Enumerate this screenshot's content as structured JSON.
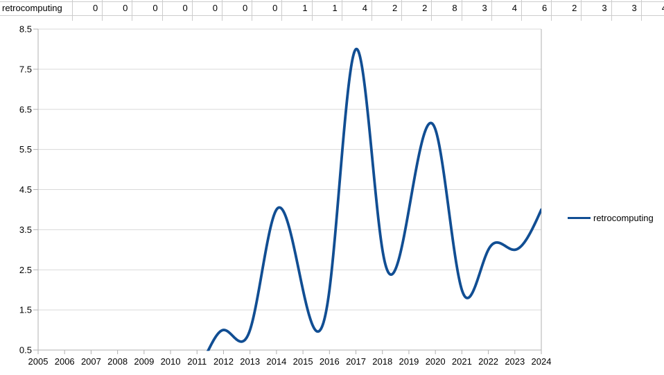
{
  "spreadsheet": {
    "row_label": "retrocomputing",
    "values": [
      "0",
      "0",
      "0",
      "0",
      "0",
      "0",
      "0",
      "1",
      "1",
      "4",
      "2",
      "2",
      "8",
      "3",
      "4",
      "6",
      "2",
      "3",
      "3",
      "4"
    ]
  },
  "chart_data": {
    "type": "line",
    "smooth": "cubic-spline",
    "title": "",
    "xlabel": "",
    "ylabel": "",
    "categories": [
      "2005",
      "2006",
      "2007",
      "2008",
      "2009",
      "2010",
      "2011",
      "2012",
      "2013",
      "2014",
      "2015",
      "2016",
      "2017",
      "2018",
      "2019",
      "2020",
      "2021",
      "2022",
      "2023",
      "2024"
    ],
    "series": [
      {
        "name": "retrocomputing",
        "values": [
          0,
          0,
          0,
          0,
          0,
          0,
          0,
          1,
          1,
          4,
          2,
          2,
          8,
          3,
          4,
          6,
          2,
          3,
          3,
          4
        ]
      }
    ],
    "ylim": [
      0.5,
      8.5
    ],
    "y_tick_labels": [
      "0.5",
      "1.5",
      "2.5",
      "3.5",
      "4.5",
      "5.5",
      "6.5",
      "7.5",
      "8.5"
    ],
    "grid": "horizontal",
    "legend_position": "right",
    "legend_label": "retrocomputing"
  },
  "colors": {
    "series_line": "#114e93",
    "gridline": "#d9d9d9",
    "axis": "#b0b0b0",
    "cell_border": "#cccccc",
    "text": "#000000",
    "background": "#ffffff"
  }
}
